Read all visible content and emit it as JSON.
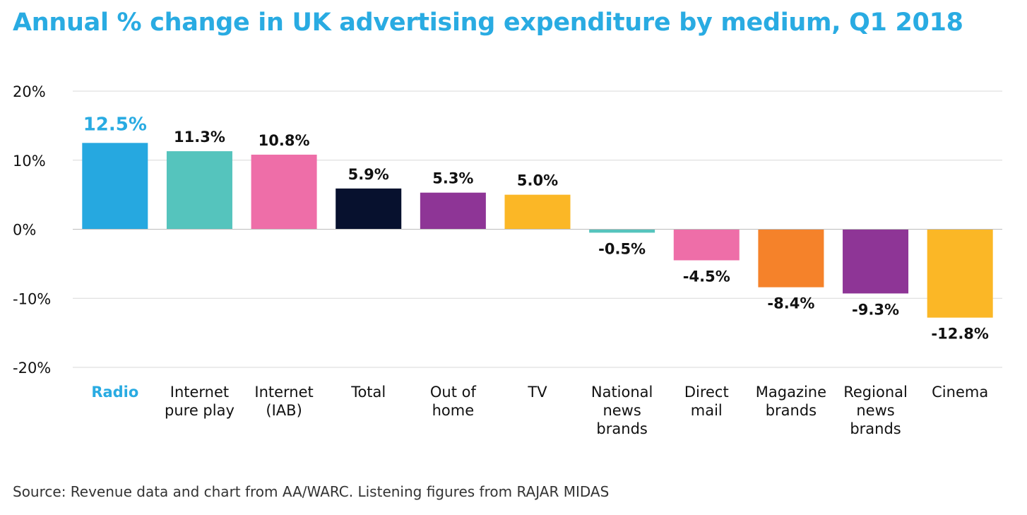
{
  "title": "Annual % change in UK advertising expenditure by medium, Q1 2018",
  "source": "Source: Revenue data and chart from AA/WARC. Listening figures from RAJAR MIDAS",
  "chart_data": {
    "type": "bar",
    "title": "Annual % change in UK advertising expenditure by medium, Q1 2018",
    "xlabel": "",
    "ylabel": "",
    "ylim": [
      -20,
      20
    ],
    "yticks": [
      20,
      10,
      0,
      -10,
      -20
    ],
    "ytick_labels": [
      "20%",
      "10%",
      "0%",
      "-10%",
      "-20%"
    ],
    "grid": true,
    "highlight_category": "Radio",
    "highlight_color": "#29abe2",
    "categories": [
      [
        "Radio"
      ],
      [
        "Internet",
        "pure play"
      ],
      [
        "Internet",
        "(IAB)"
      ],
      [
        "Total"
      ],
      [
        "Out of",
        "home"
      ],
      [
        "TV"
      ],
      [
        "National",
        "news",
        "brands"
      ],
      [
        "Direct",
        "mail"
      ],
      [
        "Magazine",
        "brands"
      ],
      [
        "Regional",
        "news",
        "brands"
      ],
      [
        "Cinema"
      ]
    ],
    "values": [
      12.5,
      11.3,
      10.8,
      5.9,
      5.3,
      5.0,
      -0.5,
      -4.5,
      -8.4,
      -9.3,
      -12.8
    ],
    "data_labels": [
      "12.5%",
      "11.3%",
      "10.8%",
      "5.9%",
      "5.3%",
      "5.0%",
      "-0.5%",
      "-4.5%",
      "-8.4%",
      "-9.3%",
      "-12.8%"
    ],
    "colors": [
      "#26a8e0",
      "#55c4bd",
      "#ee6ea8",
      "#07112e",
      "#8e3596",
      "#fbb726",
      "#55c4bd",
      "#ee6ea8",
      "#f5822a",
      "#8e3596",
      "#fbb726"
    ]
  }
}
